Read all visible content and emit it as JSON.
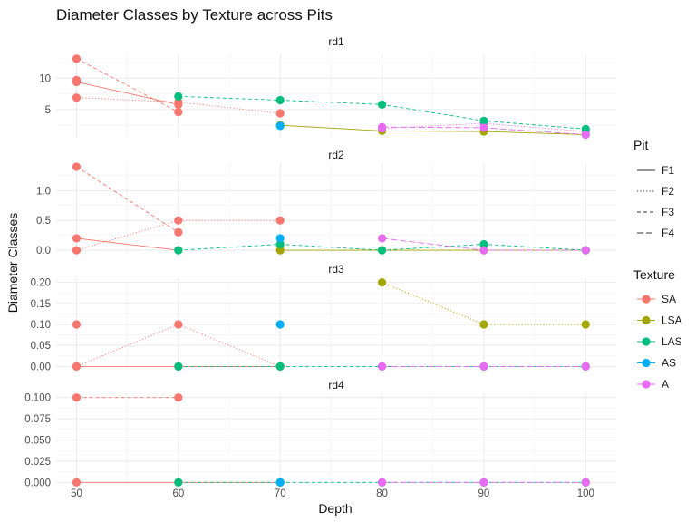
{
  "chart_data": {
    "type": "line",
    "title": "Diameter Classes by Texture across Pits",
    "xlabel": "Depth",
    "ylabel": "Diameter Classes",
    "x_ticks": [
      50,
      60,
      70,
      80,
      90,
      100
    ],
    "xlim": [
      48,
      103
    ],
    "grid": true,
    "legend_position": "right",
    "pit_legend": {
      "title": "Pit",
      "items": [
        {
          "name": "F1",
          "linetype": "solid"
        },
        {
          "name": "F2",
          "linetype": "dotted"
        },
        {
          "name": "F3",
          "linetype": "dashed"
        },
        {
          "name": "F4",
          "linetype": "longdash"
        }
      ]
    },
    "texture_legend": {
      "title": "Texture",
      "items": [
        {
          "name": "SA",
          "color": "#F8766D"
        },
        {
          "name": "LSA",
          "color": "#A3A500"
        },
        {
          "name": "LAS",
          "color": "#00BF7D"
        },
        {
          "name": "AS",
          "color": "#00B0F6"
        },
        {
          "name": "A",
          "color": "#E76BF3"
        }
      ]
    },
    "panels": [
      {
        "label": "rd1",
        "ylim": [
          0.5,
          13.8
        ],
        "y_ticks": [
          5,
          10
        ],
        "y_tick_labels": [
          "5",
          "10"
        ],
        "series": [
          {
            "pit": "F1",
            "texture": "SA",
            "points": [
              [
                50,
                9.4
              ],
              [
                60,
                5.8
              ]
            ]
          },
          {
            "pit": "F1",
            "texture": "LSA",
            "points": [
              [
                70,
                2.5
              ],
              [
                80,
                1.6
              ],
              [
                90,
                1.5
              ],
              [
                100,
                1.0
              ]
            ]
          },
          {
            "pit": "F2",
            "texture": "SA",
            "points": [
              [
                50,
                6.9
              ],
              [
                60,
                6.2
              ],
              [
                70,
                4.4
              ]
            ]
          },
          {
            "pit": "F2",
            "texture": "A",
            "points": [
              [
                80,
                2.0
              ],
              [
                90,
                2.8
              ],
              [
                100,
                1.5
              ]
            ]
          },
          {
            "pit": "F3",
            "texture": "SA",
            "points": [
              [
                50,
                13.1
              ],
              [
                60,
                4.6
              ]
            ]
          },
          {
            "pit": "F3",
            "texture": "LAS",
            "points": [
              [
                60,
                7.1
              ],
              [
                70,
                6.5
              ],
              [
                80,
                5.8
              ],
              [
                90,
                3.2
              ],
              [
                100,
                1.9
              ]
            ]
          },
          {
            "pit": "F3",
            "texture": "AS",
            "points": [
              [
                70,
                2.4
              ]
            ]
          },
          {
            "pit": "F4",
            "texture": "SA",
            "points": [
              [
                50,
                9.7
              ]
            ]
          },
          {
            "pit": "F4",
            "texture": "A",
            "points": [
              [
                80,
                2.2
              ],
              [
                90,
                2.1
              ],
              [
                100,
                1.0
              ]
            ]
          }
        ]
      },
      {
        "label": "rd2",
        "ylim": [
          -0.09,
          1.46
        ],
        "y_ticks": [
          0.0,
          0.5,
          1.0
        ],
        "y_tick_labels": [
          "0.0",
          "0.5",
          "1.0"
        ],
        "series": [
          {
            "pit": "F1",
            "texture": "SA",
            "points": [
              [
                50,
                0.2
              ],
              [
                60,
                0.0
              ]
            ]
          },
          {
            "pit": "F1",
            "texture": "LSA",
            "points": [
              [
                70,
                0.0
              ],
              [
                80,
                0.0
              ],
              [
                90,
                0.0
              ],
              [
                100,
                0.0
              ]
            ]
          },
          {
            "pit": "F2",
            "texture": "SA",
            "points": [
              [
                50,
                0.0
              ],
              [
                60,
                0.5
              ],
              [
                70,
                0.5
              ]
            ]
          },
          {
            "pit": "F3",
            "texture": "SA",
            "points": [
              [
                50,
                1.4
              ],
              [
                60,
                0.3
              ]
            ]
          },
          {
            "pit": "F3",
            "texture": "LAS",
            "points": [
              [
                60,
                0.0
              ],
              [
                70,
                0.1
              ],
              [
                80,
                0.0
              ],
              [
                90,
                0.1
              ],
              [
                100,
                0.0
              ]
            ]
          },
          {
            "pit": "F3",
            "texture": "AS",
            "points": [
              [
                70,
                0.2
              ]
            ]
          },
          {
            "pit": "F4",
            "texture": "A",
            "points": [
              [
                80,
                0.2
              ],
              [
                90,
                0.0
              ],
              [
                100,
                0.0
              ]
            ]
          }
        ]
      },
      {
        "label": "rd3",
        "ylim": [
          -0.01,
          0.21
        ],
        "y_ticks": [
          0.0,
          0.05,
          0.1,
          0.15,
          0.2
        ],
        "y_tick_labels": [
          "0.00",
          "0.05",
          "0.10",
          "0.15",
          "0.20"
        ],
        "series": [
          {
            "pit": "F1",
            "texture": "SA",
            "points": [
              [
                50,
                0.0
              ],
              [
                60,
                0.0
              ],
              [
                70,
                0.0
              ]
            ]
          },
          {
            "pit": "F2",
            "texture": "SA",
            "points": [
              [
                50,
                0.0
              ],
              [
                60,
                0.1
              ],
              [
                70,
                0.0
              ]
            ]
          },
          {
            "pit": "F2",
            "texture": "LSA",
            "points": [
              [
                80,
                0.2
              ],
              [
                90,
                0.1
              ],
              [
                100,
                0.1
              ]
            ]
          },
          {
            "pit": "F3",
            "texture": "SA",
            "points": [
              [
                50,
                0.1
              ]
            ]
          },
          {
            "pit": "F3",
            "texture": "LAS",
            "points": [
              [
                60,
                0.0
              ],
              [
                70,
                0.0
              ],
              [
                80,
                0.0
              ],
              [
                90,
                0.0
              ],
              [
                100,
                0.0
              ]
            ]
          },
          {
            "pit": "F3",
            "texture": "AS",
            "points": [
              [
                70,
                0.1
              ]
            ]
          },
          {
            "pit": "F4",
            "texture": "A",
            "points": [
              [
                80,
                0.0
              ],
              [
                90,
                0.0
              ],
              [
                100,
                0.0
              ]
            ]
          }
        ]
      },
      {
        "label": "rd4",
        "ylim": [
          -0.005,
          0.105
        ],
        "y_ticks": [
          0.0,
          0.025,
          0.05,
          0.075,
          0.1
        ],
        "y_tick_labels": [
          "0.000",
          "0.025",
          "0.050",
          "0.075",
          "0.100"
        ],
        "series": [
          {
            "pit": "F1",
            "texture": "SA",
            "points": [
              [
                50,
                0.0
              ],
              [
                60,
                0.0
              ],
              [
                70,
                0.0
              ]
            ]
          },
          {
            "pit": "F3",
            "texture": "SA",
            "points": [
              [
                50,
                0.1
              ],
              [
                60,
                0.1
              ]
            ]
          },
          {
            "pit": "F3",
            "texture": "LAS",
            "points": [
              [
                60,
                0.0
              ],
              [
                70,
                0.0
              ],
              [
                80,
                0.0
              ],
              [
                90,
                0.0
              ],
              [
                100,
                0.0
              ]
            ]
          },
          {
            "pit": "F3",
            "texture": "AS",
            "points": [
              [
                70,
                0.0
              ]
            ]
          },
          {
            "pit": "F4",
            "texture": "A",
            "points": [
              [
                80,
                0.0
              ],
              [
                90,
                0.0
              ],
              [
                100,
                0.0
              ]
            ]
          }
        ]
      }
    ]
  }
}
